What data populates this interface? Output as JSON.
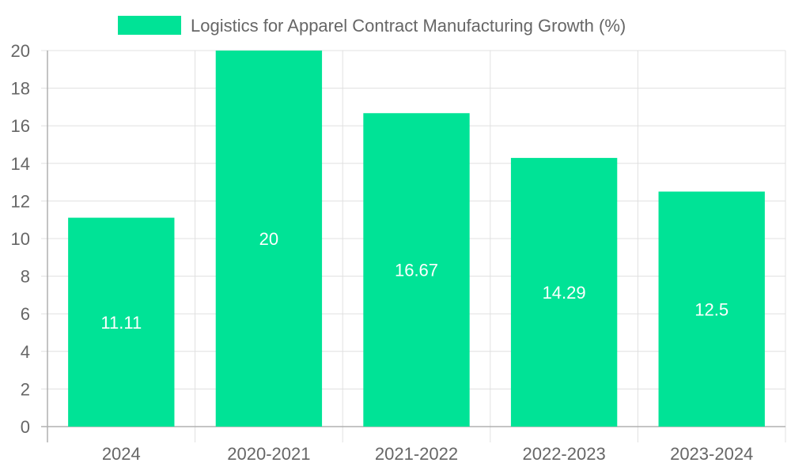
{
  "chart_data": {
    "type": "bar",
    "categories": [
      "2024",
      "2020-2021",
      "2021-2022",
      "2022-2023",
      "2023-2024"
    ],
    "series": [
      {
        "name": "Logistics for Apparel Contract Manufacturing Growth (%)",
        "values": [
          11.11,
          20,
          16.67,
          14.29,
          12.5
        ],
        "color": "#00e396"
      }
    ],
    "data_labels": [
      "11.11",
      "20",
      "16.67",
      "14.29",
      "12.5"
    ],
    "ylim": [
      0,
      20
    ],
    "yticks": [
      0,
      2,
      4,
      6,
      8,
      10,
      12,
      14,
      16,
      18,
      20
    ],
    "grid": true,
    "legend_position": "top"
  },
  "colors": {
    "grid": "#e0e0e0",
    "axis": "#b0b0b0",
    "text": "#666666",
    "label": "#ffffff"
  }
}
